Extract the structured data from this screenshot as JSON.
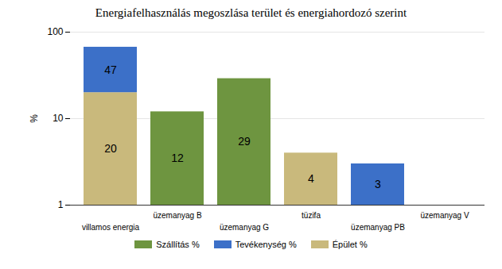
{
  "chart_data": {
    "type": "bar",
    "title": "Energiafelhasználás megoszlása terület és energiahordozó szerint",
    "ylabel": "%",
    "categories": [
      "villamos energia",
      "üzemanyag B",
      "üzemanyag G",
      "tüzifa",
      "üzemanyag PB",
      "üzemanyag V"
    ],
    "series": [
      {
        "name": "Szállítás %",
        "color": "#6e9540",
        "values": [
          null,
          12,
          29,
          null,
          null,
          null
        ]
      },
      {
        "name": "Tevékenység %",
        "color": "#3c70c8",
        "values": [
          47,
          null,
          null,
          null,
          3,
          null
        ]
      },
      {
        "name": "Épület %",
        "color": "#c9b97c",
        "values": [
          20,
          null,
          null,
          4,
          null,
          null
        ]
      }
    ],
    "ylim": [
      1,
      100
    ],
    "yticks": [
      1,
      10,
      100
    ],
    "log": "y",
    "stacked": true,
    "grid": true,
    "data_labels": true,
    "legend": "bottom"
  }
}
